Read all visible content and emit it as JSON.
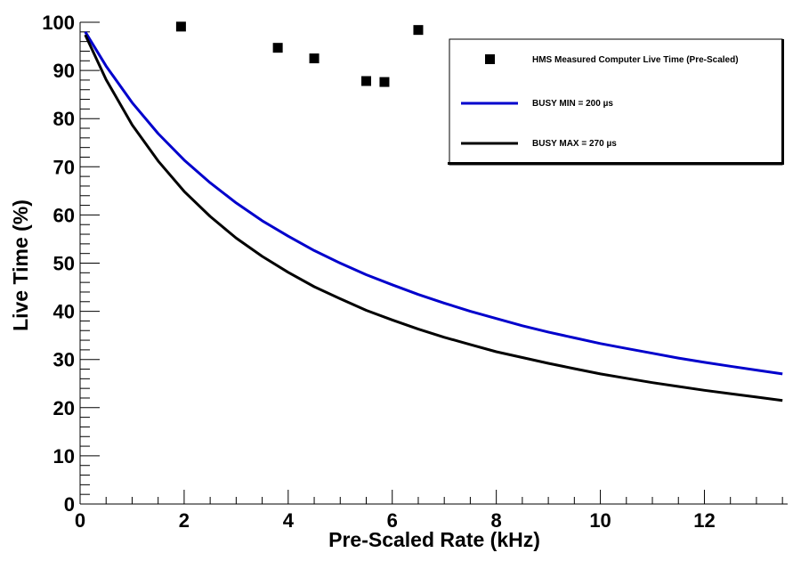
{
  "chart_data": {
    "type": "scatter",
    "xlabel": "Pre-Scaled Rate (kHz)",
    "ylabel": "Live Time (%)",
    "xlim": [
      0,
      13.6
    ],
    "ylim": [
      0,
      100
    ],
    "x_ticks": [
      0,
      2,
      4,
      6,
      8,
      10,
      12
    ],
    "y_ticks": [
      0,
      10,
      20,
      30,
      40,
      50,
      60,
      70,
      80,
      90,
      100
    ],
    "grid": false,
    "legend_position": "top-right",
    "points_series": {
      "name": "HMS Measured Computer Live Time (Pre-Scaled)",
      "color": "#000000",
      "marker": "square",
      "points": [
        {
          "x": 1.94,
          "y": 99.1
        },
        {
          "x": 3.8,
          "y": 94.7
        },
        {
          "x": 4.5,
          "y": 92.5
        },
        {
          "x": 5.5,
          "y": 87.8
        },
        {
          "x": 5.85,
          "y": 87.6
        },
        {
          "x": 6.5,
          "y": 98.4
        }
      ]
    },
    "line_series": [
      {
        "name": "BUSY MIN = 200  µs",
        "color": "#0000cc",
        "busy_us": 200,
        "x": [
          0.1,
          0.5,
          1,
          1.5,
          2,
          2.5,
          3,
          3.5,
          4,
          4.5,
          5,
          5.5,
          6,
          6.5,
          7,
          7.5,
          8,
          8.5,
          9,
          9.5,
          10,
          10.5,
          11,
          11.5,
          12,
          12.5,
          13,
          13.5
        ],
        "y": [
          98.0,
          90.9,
          83.3,
          76.9,
          71.4,
          66.7,
          62.5,
          58.8,
          55.6,
          52.6,
          50.0,
          47.6,
          45.5,
          43.5,
          41.7,
          40.0,
          38.5,
          37.0,
          35.7,
          34.5,
          33.3,
          32.3,
          31.3,
          30.3,
          29.4,
          28.6,
          27.8,
          27.0
        ]
      },
      {
        "name": "BUSY MAX = 270  µs",
        "color": "#000000",
        "busy_us": 270,
        "x": [
          0.1,
          0.5,
          1,
          1.5,
          2,
          2.5,
          3,
          3.5,
          4,
          4.5,
          5,
          5.5,
          6,
          6.5,
          7,
          7.5,
          8,
          8.5,
          9,
          9.5,
          10,
          10.5,
          11,
          11.5,
          12,
          12.5,
          13,
          13.5
        ],
        "y": [
          97.4,
          88.1,
          78.7,
          71.2,
          64.9,
          59.7,
          55.2,
          51.4,
          48.1,
          45.1,
          42.6,
          40.2,
          38.2,
          36.3,
          34.6,
          33.1,
          31.6,
          30.4,
          29.2,
          28.1,
          27.0,
          26.1,
          25.2,
          24.4,
          23.6,
          22.9,
          22.2,
          21.5
        ]
      }
    ]
  }
}
